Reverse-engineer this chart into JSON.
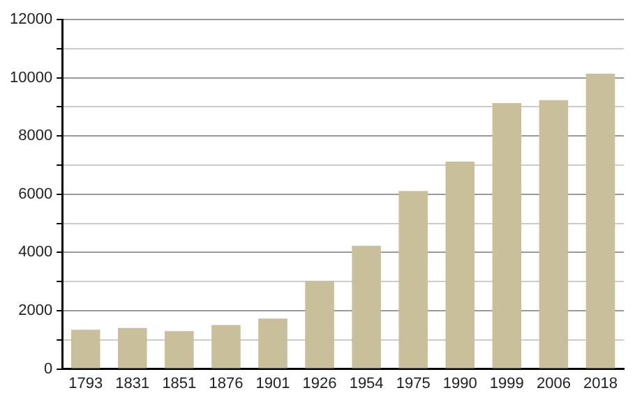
{
  "chart_data": {
    "type": "bar",
    "categories": [
      "1793",
      "1831",
      "1851",
      "1876",
      "1901",
      "1926",
      "1954",
      "1975",
      "1990",
      "1999",
      "2006",
      "2018"
    ],
    "values": [
      1350,
      1410,
      1300,
      1510,
      1730,
      3030,
      4230,
      6110,
      7120,
      9130,
      9230,
      10140
    ],
    "color": "#c9bf9a",
    "ylim": [
      0,
      12000
    ],
    "yticks": [
      0,
      {
        "value": 1000,
        "label": null
      },
      2000,
      {
        "value": 3000,
        "label": null
      },
      4000,
      {
        "value": 5000,
        "label": null
      },
      6000,
      {
        "value": 7000,
        "label": null
      },
      8000,
      {
        "value": 9000,
        "label": null
      },
      10000,
      {
        "value": 11000,
        "label": null
      },
      12000
    ],
    "grid": "y"
  }
}
